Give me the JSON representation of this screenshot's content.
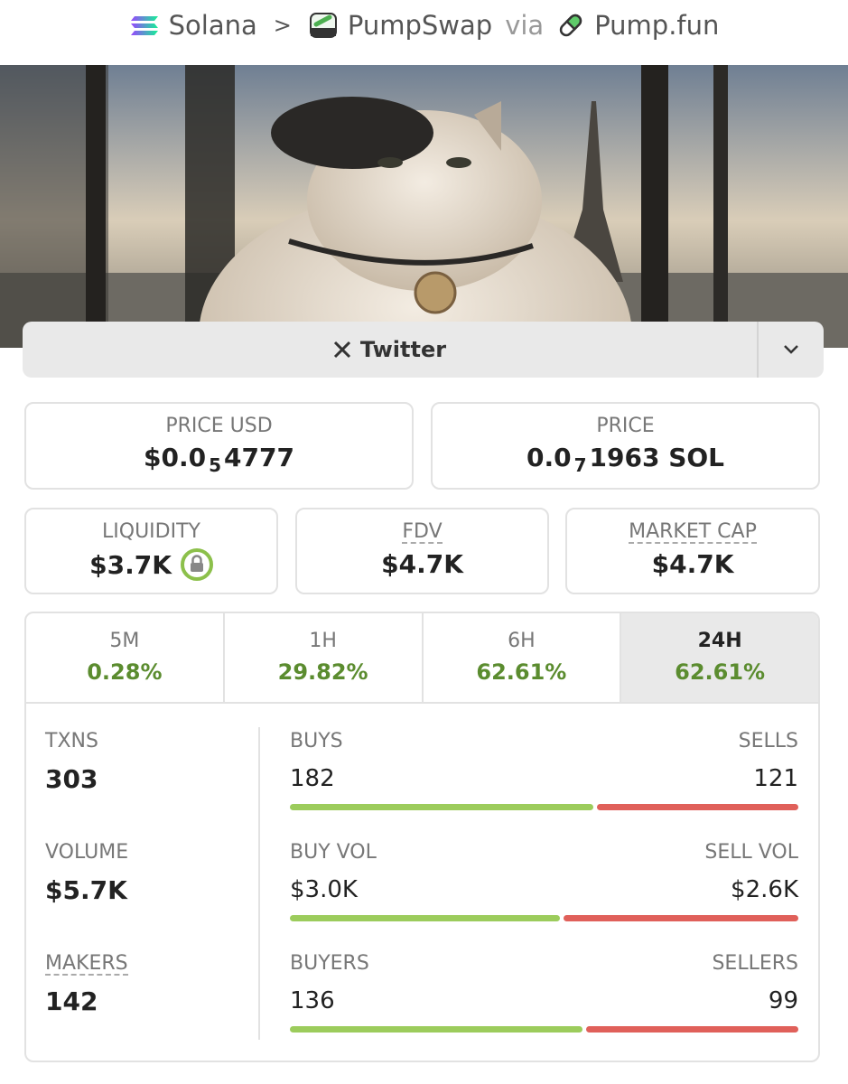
{
  "breadcrumb": {
    "chain": "Solana",
    "dex": "PumpSwap",
    "via": "via",
    "launchpad": "Pump.fun"
  },
  "social_button": "Twitter",
  "price_usd": {
    "label": "PRICE USD",
    "prefix": "$0.0",
    "zeros": "5",
    "digits": "4777"
  },
  "price": {
    "label": "PRICE",
    "prefix": "0.0",
    "zeros": "7",
    "digits": "1963 SOL"
  },
  "liquidity": {
    "label": "LIQUIDITY",
    "value": "$3.7K"
  },
  "fdv": {
    "label": "FDV",
    "value": "$4.7K"
  },
  "market_cap": {
    "label": "MARKET CAP",
    "value": "$4.7K"
  },
  "tabs": [
    {
      "label": "5M",
      "change": "0.28%"
    },
    {
      "label": "1H",
      "change": "29.82%"
    },
    {
      "label": "6H",
      "change": "62.61%"
    },
    {
      "label": "24H",
      "change": "62.61%",
      "selected": true
    }
  ],
  "stats": [
    {
      "label": "TXNS",
      "value": 303,
      "buy_label": "BUYS",
      "buy": 182,
      "sell_label": "SELLS",
      "sell": 121
    },
    {
      "label": "VOLUME",
      "value": "$5.7K",
      "buy_label": "BUY VOL",
      "buy": {
        "value": 3000,
        "label": "$3.0K"
      },
      "sell_label": "SELL VOL",
      "sell": {
        "value": 2600,
        "label": "$2.6K"
      }
    },
    {
      "label": "MAKERS",
      "value": 142,
      "buy_label": "BUYERS",
      "buy": 136,
      "sell_label": "SELLERS",
      "sell": 99
    }
  ]
}
